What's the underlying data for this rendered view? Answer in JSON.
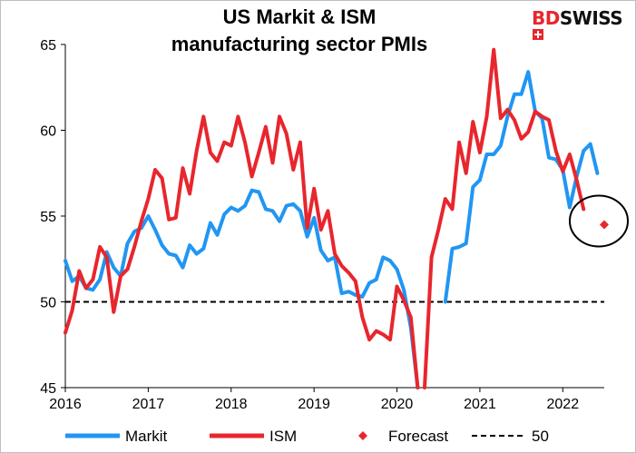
{
  "logo": {
    "part1": "BD",
    "part2": "SWISS"
  },
  "chart_data": {
    "type": "line",
    "title_line1": "US Markit & ISM",
    "title_line2": "manufacturing sector PMIs",
    "xlim": [
      2016,
      2022.5
    ],
    "ylim": [
      45,
      65
    ],
    "x_ticks": [
      2016,
      2017,
      2018,
      2019,
      2020,
      2021,
      2022
    ],
    "x_tick_labels": [
      "2016",
      "2017",
      "2018",
      "2019",
      "2020",
      "2021",
      "2022"
    ],
    "y_ticks": [
      45,
      50,
      55,
      60,
      65
    ],
    "y_tick_labels": [
      "45",
      "50",
      "55",
      "60",
      "65"
    ],
    "grid": false,
    "legend_position": "bottom",
    "series": [
      {
        "name": "Markit",
        "color": "#2196f3",
        "points": [
          [
            2016.0,
            52.4
          ],
          [
            2016.083,
            51.2
          ],
          [
            2016.167,
            51.5
          ],
          [
            2016.25,
            50.8
          ],
          [
            2016.333,
            50.7
          ],
          [
            2016.417,
            51.3
          ],
          [
            2016.5,
            52.9
          ],
          [
            2016.583,
            52.0
          ],
          [
            2016.667,
            51.5
          ],
          [
            2016.75,
            53.4
          ],
          [
            2016.833,
            54.1
          ],
          [
            2016.917,
            54.3
          ],
          [
            2017.0,
            55.0
          ],
          [
            2017.083,
            54.2
          ],
          [
            2017.167,
            53.3
          ],
          [
            2017.25,
            52.8
          ],
          [
            2017.333,
            52.7
          ],
          [
            2017.417,
            52.0
          ],
          [
            2017.5,
            53.3
          ],
          [
            2017.583,
            52.8
          ],
          [
            2017.667,
            53.1
          ],
          [
            2017.75,
            54.6
          ],
          [
            2017.833,
            53.9
          ],
          [
            2017.917,
            55.1
          ],
          [
            2018.0,
            55.5
          ],
          [
            2018.083,
            55.3
          ],
          [
            2018.167,
            55.6
          ],
          [
            2018.25,
            56.5
          ],
          [
            2018.333,
            56.4
          ],
          [
            2018.417,
            55.4
          ],
          [
            2018.5,
            55.3
          ],
          [
            2018.583,
            54.7
          ],
          [
            2018.667,
            55.6
          ],
          [
            2018.75,
            55.7
          ],
          [
            2018.833,
            55.3
          ],
          [
            2018.917,
            53.8
          ],
          [
            2019.0,
            54.9
          ],
          [
            2019.083,
            53.0
          ],
          [
            2019.167,
            52.4
          ],
          [
            2019.25,
            52.6
          ],
          [
            2019.333,
            50.5
          ],
          [
            2019.417,
            50.6
          ],
          [
            2019.5,
            50.4
          ],
          [
            2019.583,
            50.3
          ],
          [
            2019.667,
            51.1
          ],
          [
            2019.75,
            51.3
          ],
          [
            2019.833,
            52.6
          ],
          [
            2019.917,
            52.4
          ],
          [
            2020.0,
            51.9
          ],
          [
            2020.083,
            50.7
          ],
          [
            2020.167,
            48.5
          ],
          [
            2020.25,
            45.0
          ]
        ],
        "points_b": [
          [
            2020.583,
            50.0
          ],
          [
            2020.667,
            53.1
          ],
          [
            2020.75,
            53.2
          ],
          [
            2020.833,
            53.4
          ],
          [
            2020.917,
            56.7
          ],
          [
            2021.0,
            57.1
          ],
          [
            2021.083,
            58.6
          ],
          [
            2021.167,
            58.6
          ],
          [
            2021.25,
            59.1
          ],
          [
            2021.333,
            60.8
          ],
          [
            2021.417,
            62.1
          ],
          [
            2021.5,
            62.1
          ],
          [
            2021.583,
            63.4
          ],
          [
            2021.667,
            61.1
          ],
          [
            2021.75,
            60.7
          ],
          [
            2021.833,
            58.4
          ],
          [
            2021.917,
            58.3
          ],
          [
            2022.0,
            57.7
          ],
          [
            2022.083,
            55.5
          ],
          [
            2022.167,
            57.3
          ],
          [
            2022.25,
            58.8
          ],
          [
            2022.333,
            59.2
          ],
          [
            2022.417,
            57.5
          ]
        ]
      },
      {
        "name": "ISM",
        "color": "#e8262d",
        "points": [
          [
            2016.0,
            48.2
          ],
          [
            2016.083,
            49.5
          ],
          [
            2016.167,
            51.8
          ],
          [
            2016.25,
            50.8
          ],
          [
            2016.333,
            51.3
          ],
          [
            2016.417,
            53.2
          ],
          [
            2016.5,
            52.6
          ],
          [
            2016.583,
            49.4
          ],
          [
            2016.667,
            51.5
          ],
          [
            2016.75,
            51.9
          ],
          [
            2016.833,
            53.2
          ],
          [
            2016.917,
            54.7
          ],
          [
            2017.0,
            56.0
          ],
          [
            2017.083,
            57.7
          ],
          [
            2017.167,
            57.2
          ],
          [
            2017.25,
            54.8
          ],
          [
            2017.333,
            54.9
          ],
          [
            2017.417,
            57.8
          ],
          [
            2017.5,
            56.3
          ],
          [
            2017.583,
            58.8
          ],
          [
            2017.667,
            60.8
          ],
          [
            2017.75,
            58.7
          ],
          [
            2017.833,
            58.2
          ],
          [
            2017.917,
            59.3
          ],
          [
            2018.0,
            59.1
          ],
          [
            2018.083,
            60.8
          ],
          [
            2018.167,
            59.3
          ],
          [
            2018.25,
            57.3
          ],
          [
            2018.333,
            58.7
          ],
          [
            2018.417,
            60.2
          ],
          [
            2018.5,
            58.1
          ],
          [
            2018.583,
            60.8
          ],
          [
            2018.667,
            59.8
          ],
          [
            2018.75,
            57.7
          ],
          [
            2018.833,
            59.3
          ],
          [
            2018.917,
            54.3
          ],
          [
            2019.0,
            56.6
          ],
          [
            2019.083,
            54.2
          ],
          [
            2019.167,
            55.3
          ],
          [
            2019.25,
            52.8
          ],
          [
            2019.333,
            52.1
          ],
          [
            2019.417,
            51.7
          ],
          [
            2019.5,
            51.2
          ],
          [
            2019.583,
            49.1
          ],
          [
            2019.667,
            47.8
          ],
          [
            2019.75,
            48.3
          ],
          [
            2019.833,
            48.1
          ],
          [
            2019.917,
            47.8
          ],
          [
            2020.0,
            50.9
          ],
          [
            2020.083,
            50.1
          ],
          [
            2020.167,
            49.1
          ],
          [
            2020.25,
            45.0
          ]
        ],
        "points_b": [
          [
            2020.333,
            45.0
          ],
          [
            2020.417,
            52.6
          ],
          [
            2020.5,
            54.2
          ],
          [
            2020.583,
            56.0
          ],
          [
            2020.667,
            55.4
          ],
          [
            2020.75,
            59.3
          ],
          [
            2020.833,
            57.5
          ],
          [
            2020.917,
            60.5
          ],
          [
            2021.0,
            58.7
          ],
          [
            2021.083,
            60.8
          ],
          [
            2021.167,
            64.7
          ],
          [
            2021.25,
            60.7
          ],
          [
            2021.333,
            61.2
          ],
          [
            2021.417,
            60.6
          ],
          [
            2021.5,
            59.5
          ],
          [
            2021.583,
            59.9
          ],
          [
            2021.667,
            61.1
          ],
          [
            2021.75,
            60.8
          ],
          [
            2021.833,
            60.6
          ],
          [
            2021.917,
            58.8
          ],
          [
            2022.0,
            57.6
          ],
          [
            2022.083,
            58.6
          ],
          [
            2022.167,
            57.1
          ],
          [
            2022.25,
            55.4
          ]
        ]
      },
      {
        "name": "Forecast",
        "color": "#e8262d",
        "marker": "diamond",
        "points": [
          [
            2022.5,
            54.5
          ]
        ]
      },
      {
        "name": "50",
        "color": "#000000",
        "style": "dashed",
        "points": [
          [
            2016,
            50
          ],
          [
            2022.5,
            50
          ]
        ]
      }
    ]
  }
}
